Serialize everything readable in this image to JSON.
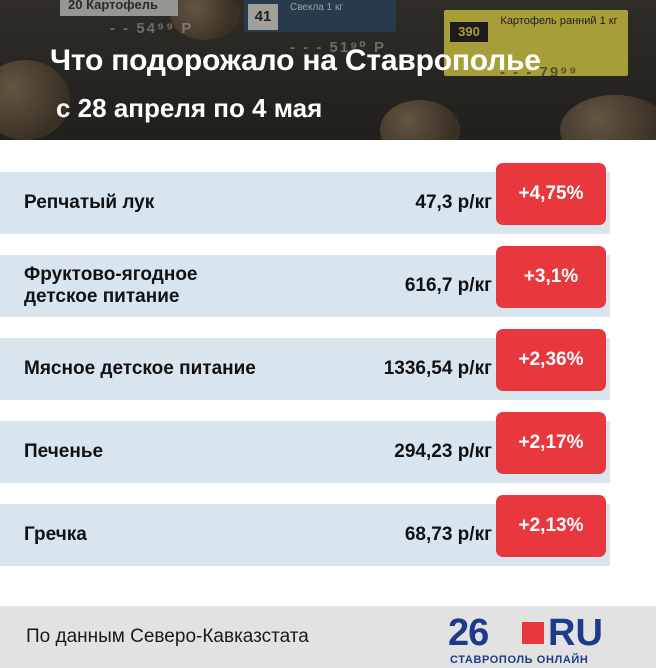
{
  "header": {
    "title": "Что подорожало на Ставрополье",
    "subtitle": "с 28 апреля по 4 мая",
    "photo_tags": {
      "tag1_text": "20  Картофель",
      "tag2_number": "41",
      "tag2_text": "Свекла 1 кг",
      "price1": "- - 54⁹⁹ Р",
      "price2": "- - - 51⁹⁰ Р",
      "yellow_number": "390",
      "yellow_text": "Картофель ранний 1 кг",
      "price3": "- - - 79⁹⁹"
    }
  },
  "rows": [
    {
      "name": "Репчатый лук",
      "price": "47,3 р/кг",
      "change": "+4,75%"
    },
    {
      "name": "Фруктово-ягодное детское питание",
      "price": "616,7 р/кг",
      "change": "+3,1%"
    },
    {
      "name": "Мясное детское питание",
      "price": "1336,54 р/кг",
      "change": "+2,36%"
    },
    {
      "name": "Печенье",
      "price": "294,23 р/кг",
      "change": "+2,17%"
    },
    {
      "name": "Гречка",
      "price": "68,73 р/кг",
      "change": "+2,13%"
    }
  ],
  "footer": {
    "source": "По данным Северо-Кавказстата",
    "logo_number": "26",
    "logo_ru": "RU",
    "logo_sub": "СТАВРОПОЛЬ ОНЛАЙН"
  },
  "colors": {
    "row_bg": "#d8e4ee",
    "badge": "#e8383d",
    "logo": "#1e3a8a",
    "footer_bg": "#e2e2e2"
  }
}
